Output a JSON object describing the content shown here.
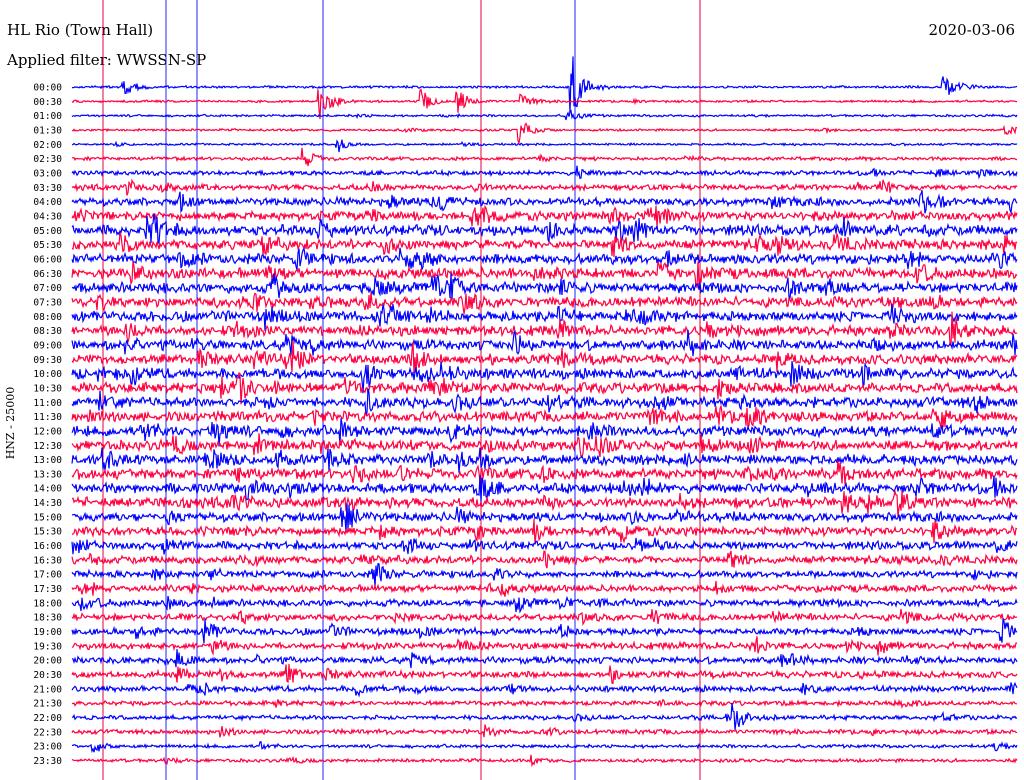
{
  "header": {
    "title": "HL Rio (Town Hall)",
    "date": "2020-03-06",
    "filter": "Applied filter: WWSSN-SP"
  },
  "chart_data": {
    "type": "line",
    "title": "HL Rio (Town Hall)",
    "date": "2020-03-06",
    "filter": "Applied filter: WWSSN-SP",
    "ylabel": "HNZ - 25000",
    "xlabel": "",
    "row_labels": [
      "00:00",
      "00:30",
      "01:00",
      "01:30",
      "02:00",
      "02:30",
      "03:00",
      "03:30",
      "04:00",
      "04:30",
      "05:00",
      "05:30",
      "06:00",
      "06:30",
      "07:00",
      "07:30",
      "08:00",
      "08:30",
      "09:00",
      "09:30",
      "10:00",
      "10:30",
      "11:00",
      "11:30",
      "12:00",
      "12:30",
      "13:00",
      "13:30",
      "14:00",
      "14:30",
      "15:00",
      "15:30",
      "16:00",
      "16:30",
      "17:00",
      "17:30",
      "18:00",
      "18:30",
      "19:00",
      "19:30",
      "20:00",
      "20:30",
      "21:00",
      "21:30",
      "22:00",
      "22:30",
      "23:00",
      "23:30"
    ],
    "trace_colors": [
      "#0000ff",
      "#ff0040"
    ],
    "marker_color_red": "#e0003c",
    "marker_color_blue": "#2020ff",
    "row_noise_amplitude": [
      1,
      1,
      1,
      1,
      1,
      1.5,
      2,
      2.5,
      3.5,
      4,
      4.5,
      4.5,
      4.5,
      4.5,
      4.5,
      4.5,
      4.5,
      4.5,
      4.5,
      4.5,
      4.5,
      4.5,
      4.5,
      4.5,
      4.5,
      4.5,
      4.5,
      4.5,
      4.5,
      4.5,
      4,
      4,
      3.5,
      3.5,
      3,
      3,
      3,
      3,
      3,
      3,
      3,
      3,
      2.5,
      2,
      2,
      2,
      1.5,
      1.5
    ],
    "grid": false
  }
}
